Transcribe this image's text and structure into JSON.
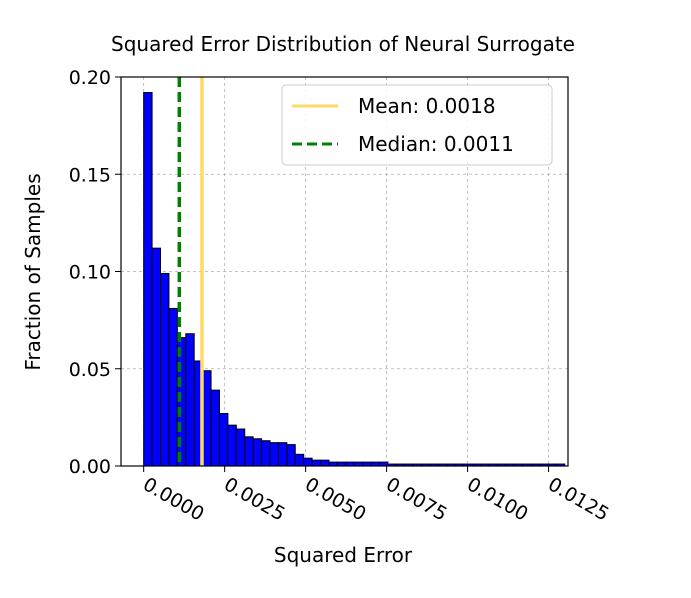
{
  "chart_data": {
    "type": "bar",
    "title": "Squared Error Distribution of Neural Surrogate",
    "xlabel": "Squared Error",
    "ylabel": "Fraction of Samples",
    "xlim": [
      -0.0007,
      0.0131
    ],
    "ylim": [
      0,
      0.2
    ],
    "grid": true,
    "legend_position": "top-right",
    "bar_color": "#0000ff",
    "bar_edge_color": "#000000",
    "bin_start": 0.0,
    "bin_width": 0.00026,
    "values": [
      0.192,
      0.112,
      0.099,
      0.081,
      0.066,
      0.068,
      0.054,
      0.049,
      0.039,
      0.027,
      0.021,
      0.019,
      0.015,
      0.014,
      0.013,
      0.012,
      0.012,
      0.011,
      0.006,
      0.004,
      0.003,
      0.003,
      0.002,
      0.002,
      0.002,
      0.002,
      0.002,
      0.002,
      0.002,
      0.001,
      0.001,
      0.001,
      0.001,
      0.001,
      0.001,
      0.001,
      0.001,
      0.001,
      0.001,
      0.001,
      0.001,
      0.001,
      0.001,
      0.001,
      0.001,
      0.001,
      0.001,
      0.001,
      0.001,
      0.001
    ],
    "x_ticks": [
      0.0,
      0.0025,
      0.005,
      0.0075,
      0.01,
      0.0125
    ],
    "x_tick_labels": [
      "0.0000",
      "0.0025",
      "0.0050",
      "0.0075",
      "0.0100",
      "0.0125"
    ],
    "y_ticks": [
      0.0,
      0.05,
      0.1,
      0.15,
      0.2
    ],
    "y_tick_labels": [
      "0.00",
      "0.05",
      "0.10",
      "0.15",
      "0.20"
    ],
    "reference_lines": [
      {
        "label": "Mean: 0.0018",
        "value": 0.0018,
        "color": "#ffd966",
        "style": "solid"
      },
      {
        "label": "Median: 0.0011",
        "value": 0.0011,
        "color": "#008000",
        "style": "dashed"
      }
    ]
  }
}
